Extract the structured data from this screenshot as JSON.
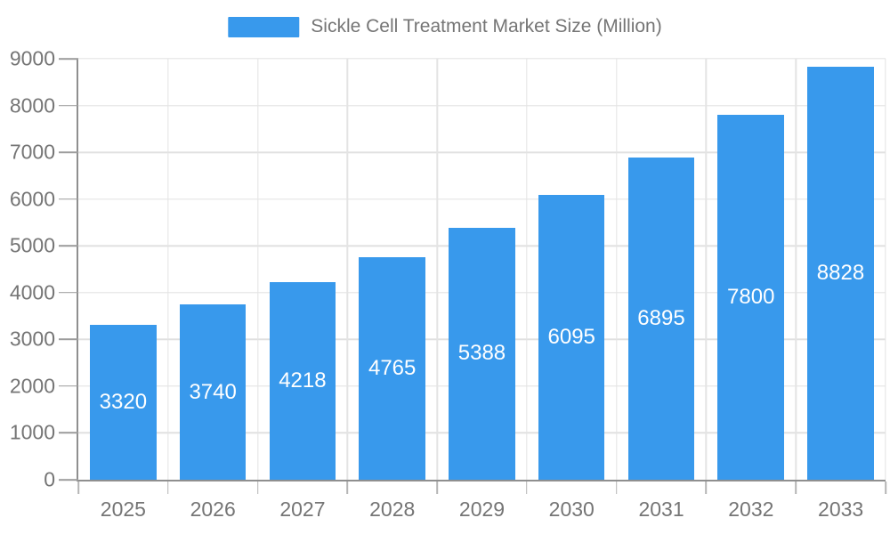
{
  "chart_data": {
    "type": "bar",
    "title": "Sickle Cell Treatment Market Size (Million)",
    "categories": [
      "2025",
      "2026",
      "2027",
      "2028",
      "2029",
      "2030",
      "2031",
      "2032",
      "2033"
    ],
    "series": [
      {
        "name": "Sickle Cell Treatment Market Size (Million)",
        "values": [
          3320,
          3740,
          4218,
          4765,
          5388,
          6095,
          6895,
          7800,
          8828
        ]
      }
    ],
    "xlabel": "",
    "ylabel": "",
    "ylim": [
      0,
      9000
    ],
    "y_ticks": [
      0,
      1000,
      2000,
      3000,
      4000,
      5000,
      6000,
      7000,
      8000,
      9000
    ],
    "grid": true,
    "legend_position": "top",
    "value_labels_position": "inside-center",
    "colors": {
      "bar": "#3899EC",
      "value_label": "#FFFFFF",
      "axis_text": "#757575",
      "axis_line": "#8F8F8F",
      "grid_line": "#E0E0E0",
      "background": "#FFFFFF"
    }
  }
}
